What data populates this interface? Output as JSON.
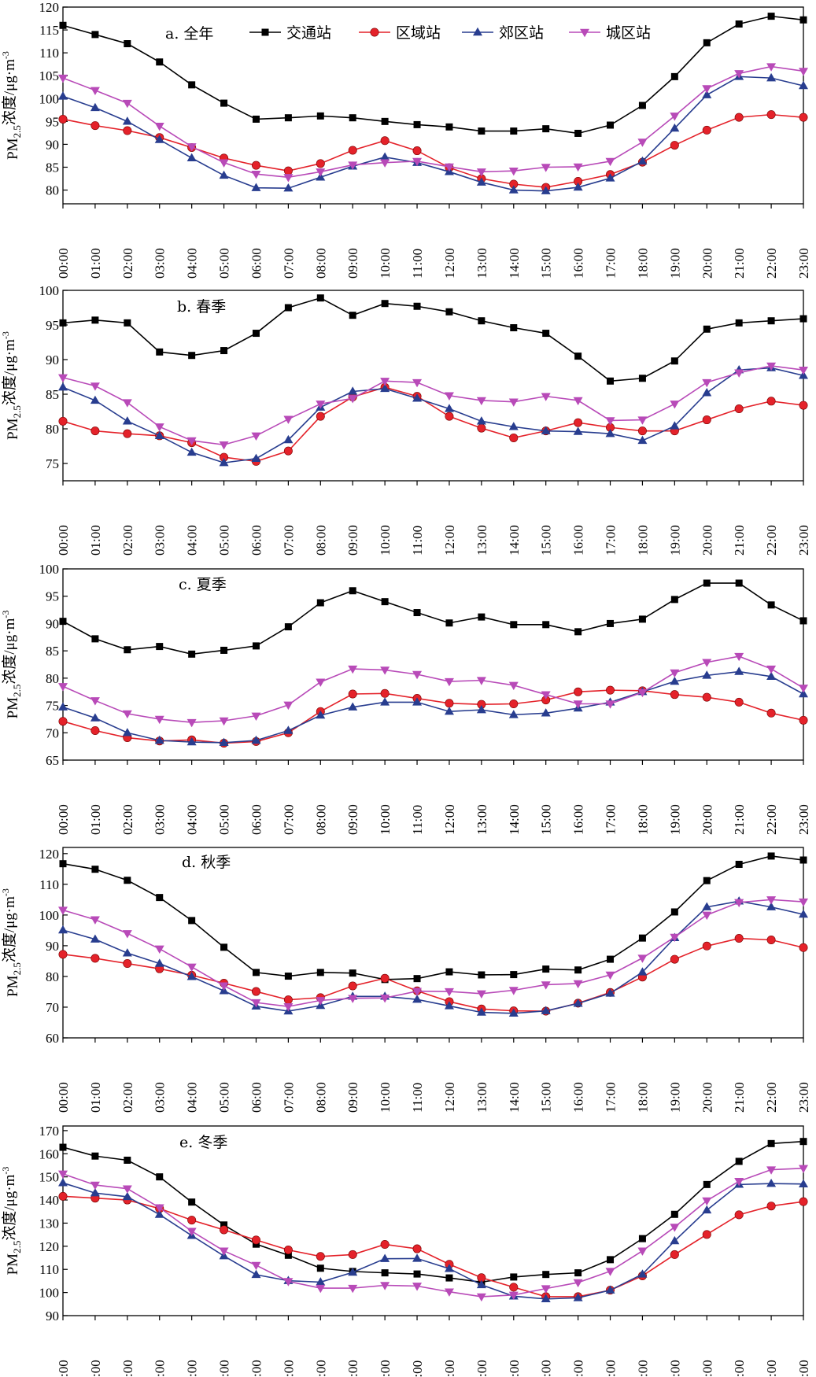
{
  "x_labels": [
    "00:00",
    "01:00",
    "02:00",
    "03:00",
    "04:00",
    "05:00",
    "06:00",
    "07:00",
    "08:00",
    "09:00",
    "10:00",
    "11:00",
    "12:00",
    "13:00",
    "14:00",
    "15:00",
    "16:00",
    "17:00",
    "18:00",
    "19:00",
    "20:00",
    "21:00",
    "22:00",
    "23:00"
  ],
  "ylabel": {
    "prefix": "PM",
    "sub": "2.5",
    "mid": "浓度/μg·m",
    "sup": "-3"
  },
  "colors": {
    "交通站": "#000000",
    "区域站": "#e4222a",
    "郊区站": "#283d8f",
    "城区站": "#b84ab8"
  },
  "legend": [
    "交通站",
    "区域站",
    "郊区站",
    "城区站"
  ],
  "chart_data": [
    {
      "type": "line",
      "title": "a. 全年",
      "ylim": [
        77,
        120
      ],
      "yticks": [
        80,
        85,
        90,
        95,
        100,
        105,
        110,
        115,
        120
      ],
      "series": [
        {
          "name": "交通站",
          "marker": "square",
          "values": [
            116,
            114,
            112,
            108,
            103,
            99,
            95.5,
            95.8,
            96.2,
            95.8,
            95,
            94.3,
            93.8,
            92.9,
            92.9,
            93.4,
            92.4,
            94.2,
            98.5,
            104.8,
            112.2,
            116.3,
            118,
            117.2
          ]
        },
        {
          "name": "区域站",
          "marker": "circle",
          "values": [
            95.5,
            94.1,
            93,
            91.5,
            89.3,
            87,
            85.4,
            84.2,
            85.8,
            88.7,
            90.8,
            88.6,
            84.9,
            82.5,
            81.3,
            80.6,
            81.9,
            83.4,
            86.1,
            89.8,
            93.1,
            95.9,
            96.5,
            95.9
          ]
        },
        {
          "name": "郊区站",
          "marker": "triangle-up",
          "values": [
            100.5,
            98,
            95,
            91,
            87,
            83.2,
            80.5,
            80.4,
            82.8,
            85.2,
            87.2,
            86,
            84,
            81.7,
            80,
            79.8,
            80.6,
            82.6,
            86.3,
            93.5,
            100.8,
            104.8,
            104.5,
            102.8
          ]
        },
        {
          "name": "城区站",
          "marker": "triangle-down",
          "values": [
            104.5,
            101.8,
            99,
            94,
            89.5,
            86,
            83.5,
            82.8,
            84,
            85.5,
            86,
            86.3,
            85.1,
            84,
            84.2,
            85,
            85.1,
            86.3,
            90.5,
            96.2,
            102.2,
            105.5,
            107,
            106
          ]
        }
      ]
    },
    {
      "type": "line",
      "title": "b. 春季",
      "ylim": [
        72.5,
        100
      ],
      "yticks": [
        75,
        80,
        85,
        90,
        95,
        100
      ],
      "series": [
        {
          "name": "交通站",
          "marker": "square",
          "values": [
            95.3,
            95.7,
            95.3,
            91.1,
            90.6,
            91.3,
            93.8,
            97.5,
            98.9,
            96.4,
            98.1,
            97.7,
            96.9,
            95.6,
            94.6,
            93.8,
            90.5,
            86.9,
            87.3,
            89.8,
            94.4,
            95.3,
            95.6,
            95.9
          ]
        },
        {
          "name": "区域站",
          "marker": "circle",
          "values": [
            81.1,
            79.7,
            79.3,
            79,
            78,
            75.9,
            75.3,
            76.8,
            81.8,
            84.6,
            86,
            84.7,
            81.8,
            80.1,
            78.7,
            79.7,
            80.9,
            80.2,
            79.7,
            79.7,
            81.3,
            82.9,
            84,
            83.4
          ]
        },
        {
          "name": "郊区站",
          "marker": "triangle-up",
          "values": [
            86,
            84.1,
            81.1,
            79,
            76.6,
            75.1,
            75.7,
            78.4,
            83.1,
            85.4,
            85.8,
            84.4,
            82.9,
            81.1,
            80.3,
            79.7,
            79.6,
            79.3,
            78.3,
            80.4,
            85.2,
            88.5,
            88.8,
            87.7
          ]
        },
        {
          "name": "城区站",
          "marker": "triangle-down",
          "values": [
            87.4,
            86.2,
            83.8,
            80.3,
            78.3,
            77.7,
            79,
            81.4,
            83.6,
            84.4,
            86.9,
            86.7,
            84.8,
            84.1,
            83.9,
            84.7,
            84.1,
            81.2,
            81.3,
            83.6,
            86.7,
            88.1,
            89.1,
            88.5
          ]
        }
      ]
    },
    {
      "type": "line",
      "title": "c. 夏季",
      "ylim": [
        65,
        100
      ],
      "yticks": [
        65,
        70,
        75,
        80,
        85,
        90,
        95,
        100
      ],
      "series": [
        {
          "name": "交通站",
          "marker": "square",
          "values": [
            90.4,
            87.2,
            85.2,
            85.8,
            84.4,
            85.1,
            85.9,
            89.4,
            93.8,
            96,
            94,
            92,
            90.1,
            91.2,
            89.8,
            89.8,
            88.5,
            90,
            90.8,
            94.4,
            97.4,
            97.4,
            93.4,
            90.5
          ]
        },
        {
          "name": "区域站",
          "marker": "circle",
          "values": [
            72.1,
            70.4,
            69.1,
            68.5,
            68.7,
            68.1,
            68.4,
            70,
            73.9,
            77.1,
            77.2,
            76.3,
            75.4,
            75.2,
            75.3,
            76,
            77.5,
            77.8,
            77.7,
            77,
            76.5,
            75.6,
            73.6,
            72.3
          ]
        },
        {
          "name": "郊区站",
          "marker": "triangle-up",
          "values": [
            74.7,
            72.7,
            70,
            68.6,
            68.3,
            68.2,
            68.6,
            70.4,
            73.2,
            74.7,
            75.6,
            75.6,
            73.9,
            74.2,
            73.3,
            73.6,
            74.5,
            75.6,
            77.5,
            79.4,
            80.5,
            81.2,
            80.3,
            77.1
          ]
        },
        {
          "name": "城区站",
          "marker": "triangle-down",
          "values": [
            78.5,
            75.9,
            73.5,
            72.5,
            71.9,
            72.2,
            73.1,
            75.1,
            79.3,
            81.7,
            81.5,
            80.7,
            79.4,
            79.6,
            78.7,
            77,
            75.3,
            75.3,
            77.4,
            81,
            82.9,
            84,
            81.7,
            78.2
          ]
        }
      ]
    },
    {
      "type": "line",
      "title": "d. 秋季",
      "ylim": [
        60,
        122
      ],
      "yticks": [
        60,
        70,
        80,
        90,
        100,
        110,
        120
      ],
      "series": [
        {
          "name": "交通站",
          "marker": "square",
          "values": [
            116.7,
            114.9,
            111.3,
            105.7,
            98.2,
            89.5,
            81.3,
            80.1,
            81.3,
            81.1,
            79,
            79.3,
            81.5,
            80.5,
            80.6,
            82.4,
            82.1,
            85.6,
            92.5,
            101,
            111.2,
            116.5,
            119.2,
            117.9
          ]
        },
        {
          "name": "区域站",
          "marker": "circle",
          "values": [
            87.2,
            85.9,
            84.2,
            82.5,
            80.4,
            77.8,
            75.1,
            72.4,
            73.1,
            76.9,
            79.4,
            75.3,
            71.8,
            69.4,
            68.8,
            68.7,
            71.3,
            74.8,
            79.8,
            85.6,
            89.9,
            92.4,
            91.9,
            89.4
          ]
        },
        {
          "name": "郊区站",
          "marker": "triangle-up",
          "values": [
            95.1,
            92.1,
            87.6,
            84.2,
            79.9,
            75.3,
            70.3,
            68.7,
            70.5,
            73.5,
            73.5,
            72.5,
            70.4,
            68.3,
            68,
            68.8,
            71.2,
            74.5,
            81.4,
            92.6,
            102.6,
            104.5,
            102.6,
            100.2
          ]
        },
        {
          "name": "城区站",
          "marker": "triangle-down",
          "values": [
            101.6,
            98.5,
            94,
            89,
            83.1,
            77,
            71.5,
            70.2,
            72.2,
            72.9,
            73,
            75.2,
            75.1,
            74.4,
            75.5,
            77.3,
            77.7,
            80.5,
            86,
            92.8,
            100,
            104.1,
            105,
            104.3
          ]
        }
      ]
    },
    {
      "type": "line",
      "title": "e. 冬季",
      "ylim": [
        90,
        172
      ],
      "yticks": [
        90,
        100,
        110,
        120,
        130,
        140,
        150,
        160,
        170
      ],
      "series": [
        {
          "name": "交通站",
          "marker": "square",
          "values": [
            162.8,
            159,
            157.2,
            150,
            139.1,
            129.2,
            120.9,
            116.1,
            110.5,
            109.1,
            108.5,
            108,
            106.3,
            104.5,
            106.7,
            107.8,
            108.5,
            114.2,
            123.3,
            133.8,
            146.7,
            156.7,
            164.4,
            165.3
          ]
        },
        {
          "name": "区域站",
          "marker": "circle",
          "values": [
            141.6,
            140.8,
            140,
            136.3,
            131.3,
            127.1,
            122.7,
            118.4,
            115.6,
            116.4,
            120.8,
            118.9,
            112.2,
            106.4,
            102.3,
            98.2,
            98.2,
            101,
            107.2,
            116.4,
            125.1,
            133.6,
            137.4,
            139.3
          ]
        },
        {
          "name": "郊区站",
          "marker": "triangle-up",
          "values": [
            147.4,
            143,
            141.4,
            133.7,
            124.6,
            115.8,
            107.7,
            105.1,
            104.5,
            108.7,
            114.6,
            114.7,
            110.3,
            103.3,
            98.4,
            97.2,
            97.7,
            101,
            107.9,
            122.3,
            135.6,
            146.7,
            147.1,
            146.9
          ]
        },
        {
          "name": "城区站",
          "marker": "triangle-down",
          "values": [
            151.3,
            146.5,
            144.9,
            136.7,
            126.5,
            118,
            111.8,
            104.8,
            101.9,
            101.9,
            103.1,
            102.8,
            100.3,
            98.2,
            98.9,
            101.7,
            104.3,
            109.2,
            118,
            128.3,
            139.7,
            148.1,
            153.1,
            153.7
          ]
        }
      ]
    }
  ]
}
